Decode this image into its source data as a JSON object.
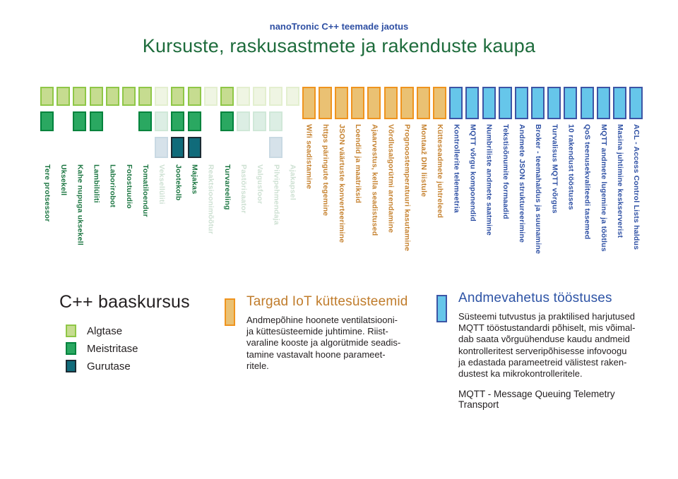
{
  "header": {
    "subtitle": "nanoTronic C++ teemade jaotus",
    "title": "Kursuste, raskusastmete ja rakenduste kaupa"
  },
  "colors": {
    "algtase_fill": "#c6dc90",
    "algtase_border": "#8fc747",
    "meistritase_fill": "#2aa861",
    "meistritase_border": "#00833d",
    "gurutase_fill": "#106b7a",
    "gurutase_border": "#1c2b33",
    "algtase_faded_fill": "#eff5e3",
    "algtase_faded_border": "#e3efcf",
    "meistritase_faded_fill": "#dceee4",
    "meistritase_faded_border": "#d0e8d8",
    "gurutase_faded_fill": "#d6e2ea",
    "gurutase_faded_border": "#c9d9e3",
    "orange_fill": "#eac173",
    "orange_border": "#ef941f",
    "blue_fill": "#66c6ea",
    "blue_border": "#3d55a5",
    "green_label": "#1a7540",
    "faded_label": "#cde0d2",
    "orange_label": "#c5812e",
    "blue_label": "#2d4fa3",
    "title_green": "#1e6c3c",
    "title_blue": "#2e4fa3",
    "orange_title": "#c07c2b",
    "blue_title": "#2d53a5",
    "text_dark": "#231f20"
  },
  "chart_data": {
    "type": "bar",
    "title": "Kursuste, raskusastmete ja rakenduste kaupa",
    "subtitle": "nanoTronic C++ teemade jaotus",
    "grid": false,
    "legend_position": "bottom-left",
    "levels": [
      "Algtase",
      "Meistritase",
      "Gurutase"
    ],
    "groups": [
      {
        "name": "C++ baaskursus",
        "kind": "levels",
        "items": [
          {
            "label": "Tere protsessor",
            "levels": [
              "algtase",
              "meistritase"
            ],
            "faded": false
          },
          {
            "label": "Uksekell",
            "levels": [
              "algtase"
            ],
            "faded": false
          },
          {
            "label": "Kahe nupuga uksekell",
            "levels": [
              "algtase",
              "meistritase"
            ],
            "faded": false
          },
          {
            "label": "Lambilüliti",
            "levels": [
              "algtase",
              "meistritase"
            ],
            "faded": false
          },
          {
            "label": "Laborirobot",
            "levels": [
              "algtase"
            ],
            "faded": false
          },
          {
            "label": "Fotostuudio",
            "levels": [
              "algtase"
            ],
            "faded": false
          },
          {
            "label": "Tomatiloendur",
            "levels": [
              "algtase",
              "meistritase"
            ],
            "faded": false
          },
          {
            "label": "Veksellüliti",
            "levels": [
              "algtase",
              "meistritase",
              "gurutase"
            ],
            "faded": true
          },
          {
            "label": "Jootekolb",
            "levels": [
              "algtase",
              "meistritase",
              "gurutase"
            ],
            "faded": false
          },
          {
            "label": "Majakas",
            "levels": [
              "algtase",
              "meistritase",
              "gurutase"
            ],
            "faded": false
          },
          {
            "label": "Reaktsioonimõõtur",
            "levels": [
              "algtase"
            ],
            "faded": true
          },
          {
            "label": "Turvareeling",
            "levels": [
              "algtase",
              "meistritase"
            ],
            "faded": false
          },
          {
            "label": "Pastörisaator",
            "levels": [
              "algtase",
              "meistritase"
            ],
            "faded": true
          },
          {
            "label": "Valgusfoor",
            "levels": [
              "algtase",
              "meistritase"
            ],
            "faded": true
          },
          {
            "label": "Pilvipehmendaja",
            "levels": [
              "algtase",
              "meistritase",
              "gurutase"
            ],
            "faded": true
          },
          {
            "label": "Ajakapsel",
            "levels": [
              "algtase"
            ],
            "faded": true
          }
        ]
      },
      {
        "name": "Targad IoT küttesüsteemid",
        "kind": "orange",
        "items": [
          {
            "label": "Wifi seadistamine"
          },
          {
            "label": "https päringute tegemine"
          },
          {
            "label": "JSON väärtuste konverteerimine"
          },
          {
            "label": "Loendid ja maatriksid"
          },
          {
            "label": "Ajaarvestus, kella seadistused"
          },
          {
            "label": "Võrdlusalgorütmi arendamine"
          },
          {
            "label": "Prognoostemperatuuri kasutamine"
          },
          {
            "label": "Montaaž DIN liistule"
          },
          {
            "label": "Kütteseadmete juhtreleed"
          }
        ]
      },
      {
        "name": "Andmevahetus tööstuses",
        "kind": "blue",
        "items": [
          {
            "label": "Kontrollerite telemeetria"
          },
          {
            "label": "MQTT võrgu komponendid"
          },
          {
            "label": "Numbriliste andmete saatmine"
          },
          {
            "label": "Tekstisõnumite formaadid"
          },
          {
            "label": "Andmete JSON struktureerimine"
          },
          {
            "label": "Broker - teemahaldus ja suunamine"
          },
          {
            "label": "Turvalisus MQTT võrgus"
          },
          {
            "label": "10 rakendust tööstuses"
          },
          {
            "label": "QoS teenusekvaliteedi tasemed"
          },
          {
            "label": "MQTT andmete lugemine ja töötlus"
          },
          {
            "label": "Masina juhtimine keskserverist"
          },
          {
            "label": "ACL - Access Control Lists haldus"
          }
        ]
      }
    ]
  },
  "legend": {
    "title": "C++ baaskursus",
    "items": [
      {
        "label": "Algtase",
        "level": "algtase"
      },
      {
        "label": "Meistritase",
        "level": "meistritase"
      },
      {
        "label": "Gurutase",
        "level": "gurutase"
      }
    ]
  },
  "iot_block": {
    "title": "Targad IoT küttesüsteemid",
    "body": "Andmepõhine hoonete ventilatsiooni-\nja küttesüsteemide juhtimine. Riist-\nvaraline kooste ja algorütmide seadis-\ntamine vastavalt hoone parameet-\nritele."
  },
  "mqtt_block": {
    "title": "Andmevahetus tööstuses",
    "body": "Süsteemi tutvustus ja praktilised harjutused\nMQTT tööstustandardi põhiselt, mis võimal-\ndab saata võrguühenduse kaudu andmeid\nkontrolleritest serveripõhisesse infovoogu\nja edastada parameetreid välistest raken-\ndustest ka mikrokontrolleritele.",
    "footnote": "MQTT - Message Queuing Telemetry Transport"
  }
}
